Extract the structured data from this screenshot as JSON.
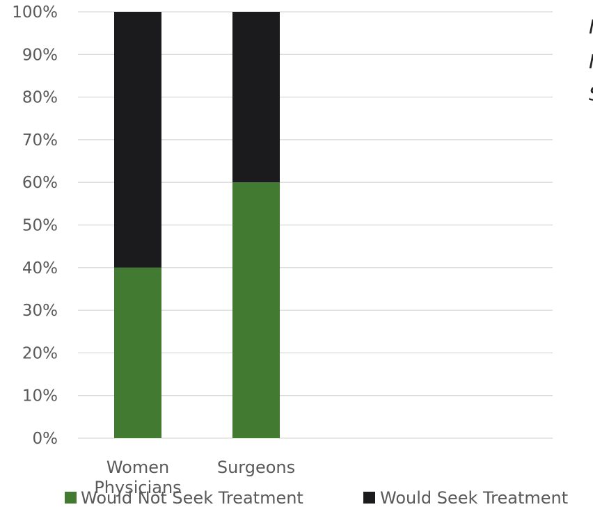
{
  "chart_data": {
    "type": "bar",
    "stacked": true,
    "categories": [
      "Women Physicians",
      "Surgeons"
    ],
    "category_lines": [
      [
        "Women",
        "Physicians"
      ],
      [
        "Surgeons"
      ]
    ],
    "series": [
      {
        "name": "Would Not Seek Treatment",
        "values": [
          40,
          60
        ],
        "color": "#437a31"
      },
      {
        "name": "Would Seek Treatment",
        "values": [
          60,
          40
        ],
        "color": "#1b1b1d"
      }
    ],
    "ylim": [
      0,
      100
    ],
    "y_ticks": [
      0,
      10,
      20,
      30,
      40,
      50,
      60,
      70,
      80,
      90,
      100
    ],
    "y_tick_labels": [
      "0%",
      "10%",
      "20%",
      "30%",
      "40%",
      "50%",
      "60%",
      "70%",
      "80%",
      "90%",
      "100%"
    ],
    "grid": true,
    "gridline_color": "#d9d9d9",
    "legend_position": "bottom",
    "xlabel": "",
    "ylabel": ""
  },
  "side_text": [
    "I",
    "I",
    "S"
  ]
}
